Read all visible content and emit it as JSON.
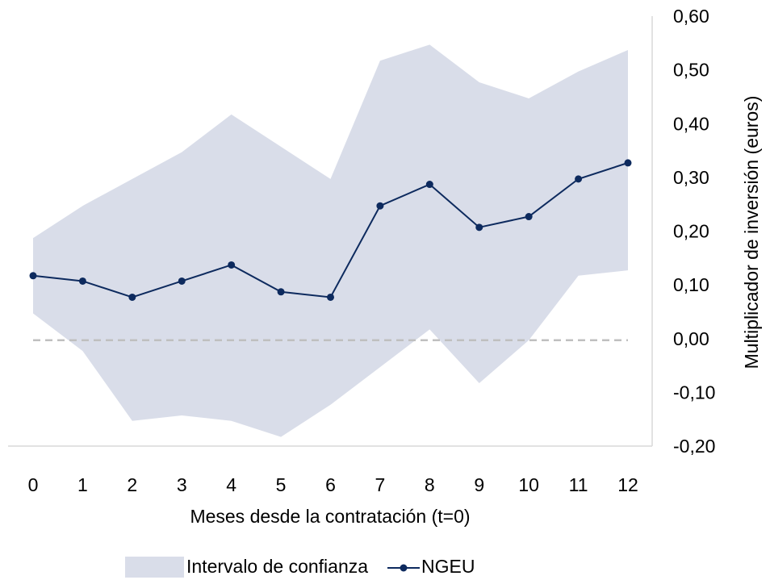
{
  "chart_data": {
    "type": "line",
    "x_label": "Meses desde la contratación (t=0)",
    "y_label": "Multiplicador de inversión (euros)",
    "x": [
      0,
      1,
      2,
      3,
      4,
      5,
      6,
      7,
      8,
      9,
      10,
      11,
      12
    ],
    "xlim": [
      0,
      12
    ],
    "series": [
      {
        "name": "Intervalo de confianza",
        "kind": "band",
        "color": "#d9dde9",
        "upper": [
          0.19,
          0.25,
          0.3,
          0.35,
          0.42,
          0.36,
          0.3,
          0.52,
          0.55,
          0.48,
          0.45,
          0.5,
          0.54
        ],
        "lower": [
          0.05,
          -0.02,
          -0.15,
          -0.14,
          -0.15,
          -0.18,
          -0.12,
          -0.05,
          0.02,
          -0.08,
          0.0,
          0.12,
          0.13
        ]
      },
      {
        "name": "NGEU",
        "kind": "line",
        "color": "#0d2a5e",
        "values": [
          0.12,
          0.11,
          0.08,
          0.11,
          0.14,
          0.09,
          0.08,
          0.25,
          0.29,
          0.21,
          0.23,
          0.3,
          0.33
        ]
      }
    ],
    "ylim": [
      -0.2,
      0.6
    ],
    "yticks": [
      {
        "value": -0.2,
        "label": "-0,20"
      },
      {
        "value": -0.1,
        "label": "-0,10"
      },
      {
        "value": 0,
        "label": "0,00"
      },
      {
        "value": 0.1,
        "label": "0,10"
      },
      {
        "value": 0.2,
        "label": "0,20"
      },
      {
        "value": 0.3,
        "label": "0,30"
      },
      {
        "value": 0.4,
        "label": "0,40"
      },
      {
        "value": 0.5,
        "label": "0,50"
      },
      {
        "value": 0.6,
        "label": "0,60"
      }
    ],
    "y_axis_side": "right",
    "reference_line": {
      "value": 0,
      "style": "dashed",
      "color": "#bfbfbf"
    },
    "legend": "bottom"
  }
}
